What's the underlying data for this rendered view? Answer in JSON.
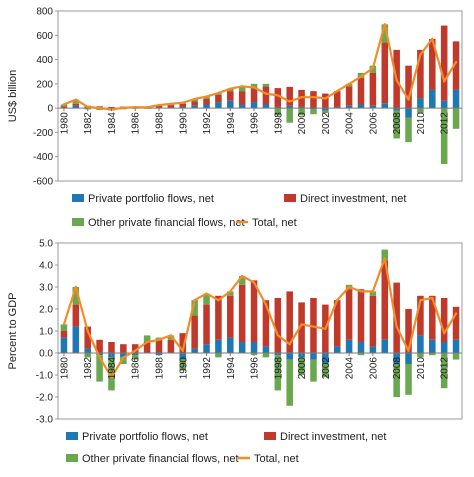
{
  "chart_data": [
    {
      "type": "bar",
      "ylabel": "US$ billion",
      "ylim": [
        -600,
        800
      ],
      "yticks": [
        -600,
        -400,
        -200,
        0,
        200,
        400,
        600,
        800
      ],
      "categories": [
        "1980",
        "1981",
        "1982",
        "1983",
        "1984",
        "1985",
        "1986",
        "1987",
        "1988",
        "1989",
        "1990",
        "1991",
        "1992",
        "1993",
        "1994",
        "1995",
        "1996",
        "1997",
        "1998",
        "1999",
        "2000",
        "2001",
        "2002",
        "2003",
        "2004",
        "2005",
        "2006",
        "2007",
        "2008",
        "2009",
        "2010",
        "2011",
        "2012",
        "2013"
      ],
      "xtick_labels": [
        "1980",
        "1982",
        "1984",
        "1986",
        "1988",
        "1990",
        "1992",
        "1994",
        "1996",
        "1998",
        "2000",
        "2002",
        "2004",
        "2006",
        "2008",
        "2010",
        "2012"
      ],
      "stacked": true,
      "series": [
        {
          "name": "Private portfolio flows, net",
          "kind": "bar",
          "color": "#1f77b4",
          "values": [
            5,
            20,
            5,
            0,
            -5,
            3,
            3,
            0,
            5,
            5,
            10,
            20,
            30,
            50,
            60,
            30,
            50,
            30,
            10,
            20,
            10,
            -10,
            -20,
            10,
            20,
            30,
            20,
            40,
            -20,
            -80,
            80,
            150,
            60,
            150
          ]
        },
        {
          "name": "Direct investment, net",
          "kind": "bar",
          "color": "#c0392b",
          "values": [
            10,
            15,
            15,
            15,
            10,
            10,
            10,
            12,
            15,
            20,
            25,
            35,
            45,
            60,
            80,
            110,
            120,
            150,
            155,
            155,
            140,
            140,
            120,
            130,
            160,
            220,
            270,
            500,
            480,
            350,
            400,
            420,
            620,
            400
          ]
        },
        {
          "name": "Other private financial flows, net",
          "kind": "bar",
          "color": "#6aa84f",
          "values": [
            15,
            35,
            -10,
            -15,
            -15,
            -10,
            -5,
            -5,
            5,
            10,
            10,
            20,
            20,
            15,
            20,
            40,
            30,
            20,
            -60,
            -120,
            -60,
            -40,
            -20,
            0,
            20,
            40,
            60,
            150,
            -230,
            -200,
            -40,
            0,
            -460,
            -170
          ]
        },
        {
          "name": "Total, net",
          "kind": "line",
          "color": "#f28c28",
          "values": [
            30,
            70,
            10,
            0,
            -10,
            3,
            8,
            7,
            25,
            35,
            45,
            75,
            95,
            125,
            160,
            180,
            170,
            120,
            105,
            55,
            90,
            90,
            80,
            140,
            200,
            260,
            330,
            690,
            230,
            70,
            440,
            570,
            220,
            380
          ]
        }
      ]
    },
    {
      "type": "bar",
      "ylabel": "Percent to GDP",
      "ylim": [
        -3.0,
        5.0
      ],
      "yticks": [
        -3.0,
        -2.0,
        -1.0,
        0.0,
        1.0,
        2.0,
        3.0,
        4.0,
        5.0
      ],
      "ytick_labels": [
        "-3.0",
        "-2.0",
        "-1.0",
        "0.0",
        "1.0",
        "2.0",
        "3.0",
        "4.0",
        "5.0"
      ],
      "categories": [
        "1980",
        "1981",
        "1982",
        "1983",
        "1984",
        "1985",
        "1986",
        "1987",
        "1988",
        "1989",
        "1990",
        "1991",
        "1992",
        "1993",
        "1994",
        "1995",
        "1996",
        "1997",
        "1998",
        "1999",
        "2000",
        "2001",
        "2002",
        "2003",
        "2004",
        "2005",
        "2006",
        "2007",
        "2008",
        "2009",
        "2010",
        "2011",
        "2012",
        "2013"
      ],
      "xtick_labels": [
        "1980",
        "1982",
        "1984",
        "1986",
        "1988",
        "1990",
        "1992",
        "1994",
        "1996",
        "1998",
        "2000",
        "2002",
        "2004",
        "2006",
        "2008",
        "2010",
        "2012"
      ],
      "stacked": true,
      "series": [
        {
          "name": "Private portfolio flows, net",
          "kind": "bar",
          "color": "#1f77b4",
          "values": [
            0.7,
            1.2,
            0.2,
            -0.1,
            -0.2,
            -0.2,
            -0.1,
            0.0,
            -0.1,
            0.0,
            -0.3,
            0.2,
            0.4,
            0.6,
            0.7,
            0.5,
            0.5,
            0.3,
            -0.1,
            -0.3,
            -0.2,
            -0.3,
            -0.5,
            0.3,
            0.6,
            0.5,
            0.3,
            0.6,
            -0.5,
            -0.5,
            0.8,
            0.6,
            0.5,
            0.6
          ]
        },
        {
          "name": "Direct investment, net",
          "kind": "bar",
          "color": "#c0392b",
          "values": [
            0.3,
            1.0,
            1.0,
            0.6,
            0.5,
            0.4,
            0.4,
            0.5,
            0.6,
            0.6,
            0.9,
            1.5,
            1.8,
            2.0,
            1.9,
            2.6,
            2.8,
            2.1,
            2.5,
            2.8,
            2.3,
            2.5,
            2.2,
            2.1,
            2.3,
            2.4,
            2.3,
            3.6,
            3.2,
            2.0,
            1.8,
            2.0,
            2.0,
            1.5
          ]
        },
        {
          "name": "Other private financial flows, net",
          "kind": "bar",
          "color": "#6aa84f",
          "values": [
            0.3,
            0.8,
            -0.2,
            -1.2,
            -1.5,
            -0.3,
            -0.2,
            0.3,
            0.1,
            0.2,
            -0.5,
            0.7,
            0.5,
            -0.2,
            0.2,
            0.4,
            -0.1,
            -0.2,
            -1.6,
            -2.1,
            -0.8,
            -1.0,
            -0.6,
            0.0,
            0.2,
            -0.1,
            0.2,
            0.5,
            -1.5,
            -1.4,
            -0.2,
            -0.1,
            -1.6,
            -0.3
          ]
        },
        {
          "name": "Total, net",
          "kind": "line",
          "color": "#f28c28",
          "values": [
            1.3,
            3.0,
            1.0,
            -0.2,
            -1.1,
            -0.2,
            0.1,
            0.5,
            0.6,
            0.8,
            0.1,
            2.4,
            2.7,
            2.4,
            2.8,
            3.5,
            3.2,
            2.2,
            0.8,
            0.4,
            1.3,
            1.2,
            1.1,
            2.4,
            3.0,
            2.8,
            2.8,
            4.3,
            1.2,
            0.1,
            2.4,
            2.5,
            0.9,
            1.8
          ]
        }
      ]
    }
  ]
}
